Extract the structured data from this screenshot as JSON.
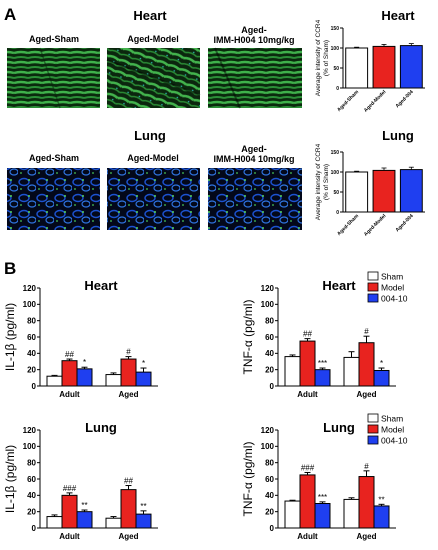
{
  "panel_a": {
    "letter": "A",
    "heart_title": "Heart",
    "lung_title": "Lung",
    "image_labels": [
      "Aged-Sham",
      "Aged-Model",
      "Aged-\nIMM-H004 10mg/kg"
    ],
    "heart_chart_title": "Heart",
    "lung_chart_title": "Lung"
  },
  "panel_b": {
    "letter": "B"
  },
  "legend": [
    "Sham",
    "Model",
    "004-10"
  ],
  "colors": {
    "sham": "#ffffff",
    "model": "#e8231f",
    "drug": "#1f3ff0",
    "heart_tissue": "#2e9a3a",
    "lung_tissue": "#1a3fb0"
  },
  "chart_data": [
    {
      "id": "a_heart",
      "type": "bar",
      "title": "Heart",
      "ylabel": "Average intensity of CCR4 (% of Sham)",
      "categories": [
        "Aged-Sham",
        "Aged-Model",
        "Aged-004"
      ],
      "values": [
        100,
        104,
        106
      ],
      "errors": [
        2,
        5,
        5
      ],
      "ylim": [
        0,
        150
      ],
      "yticks": [
        0,
        50,
        100,
        150
      ]
    },
    {
      "id": "a_lung",
      "type": "bar",
      "title": "Lung",
      "ylabel": "Average intensity of CCR4 (% of Sham)",
      "categories": [
        "Aged-Sham",
        "Aged-Model",
        "Aged-004"
      ],
      "values": [
        100,
        104,
        106
      ],
      "errors": [
        2,
        6,
        6
      ],
      "ylim": [
        0,
        150
      ],
      "yticks": [
        0,
        50,
        100,
        150
      ]
    },
    {
      "id": "b_heart_il1",
      "type": "bar",
      "title": "Heart",
      "ylabel": "IL-1β (pg/ml)",
      "categories": [
        "Adult",
        "Aged"
      ],
      "series": [
        {
          "name": "Sham",
          "values": [
            12,
            14
          ],
          "errors": [
            1,
            2
          ]
        },
        {
          "name": "Model",
          "values": [
            31,
            33
          ],
          "errors": [
            2,
            3
          ]
        },
        {
          "name": "004-10",
          "values": [
            21,
            17
          ],
          "errors": [
            2,
            5
          ]
        }
      ],
      "annotations": [
        [
          "",
          "##",
          "*"
        ],
        [
          "",
          "#",
          "*"
        ]
      ],
      "ylim": [
        0,
        120
      ],
      "yticks": [
        0,
        20,
        40,
        60,
        80,
        100,
        120
      ],
      "legend": false
    },
    {
      "id": "b_heart_tnf",
      "type": "bar",
      "title": "Heart",
      "ylabel": "TNF-α (pg/ml)",
      "categories": [
        "Adult",
        "Aged"
      ],
      "series": [
        {
          "name": "Sham",
          "values": [
            36,
            35
          ],
          "errors": [
            2,
            7
          ]
        },
        {
          "name": "Model",
          "values": [
            55,
            53
          ],
          "errors": [
            3,
            8
          ]
        },
        {
          "name": "004-10",
          "values": [
            20,
            19
          ],
          "errors": [
            2,
            3
          ]
        }
      ],
      "annotations": [
        [
          "",
          "##",
          "***"
        ],
        [
          "",
          "#",
          "*"
        ]
      ],
      "ylim": [
        0,
        120
      ],
      "yticks": [
        0,
        20,
        40,
        60,
        80,
        100,
        120
      ],
      "legend": true
    },
    {
      "id": "b_lung_il1",
      "type": "bar",
      "title": "Lung",
      "ylabel": "IL-1β (pg/ml)",
      "categories": [
        "Adult",
        "Aged"
      ],
      "series": [
        {
          "name": "Sham",
          "values": [
            14,
            12
          ],
          "errors": [
            2,
            2
          ]
        },
        {
          "name": "Model",
          "values": [
            40,
            47
          ],
          "errors": [
            3,
            5
          ]
        },
        {
          "name": "004-10",
          "values": [
            20,
            17
          ],
          "errors": [
            2,
            4
          ]
        }
      ],
      "annotations": [
        [
          "",
          "###",
          "**"
        ],
        [
          "",
          "##",
          "**"
        ]
      ],
      "ylim": [
        0,
        120
      ],
      "yticks": [
        0,
        20,
        40,
        60,
        80,
        100,
        120
      ],
      "legend": false
    },
    {
      "id": "b_lung_tnf",
      "type": "bar",
      "title": "Lung",
      "ylabel": "TNF-α (pg/ml)",
      "categories": [
        "Adult",
        "Aged"
      ],
      "series": [
        {
          "name": "Sham",
          "values": [
            33,
            35
          ],
          "errors": [
            1,
            2
          ]
        },
        {
          "name": "Model",
          "values": [
            65,
            63
          ],
          "errors": [
            3,
            7
          ]
        },
        {
          "name": "004-10",
          "values": [
            30,
            27
          ],
          "errors": [
            2,
            2
          ]
        }
      ],
      "annotations": [
        [
          "",
          "###",
          "***"
        ],
        [
          "",
          "#",
          "**"
        ]
      ],
      "ylim": [
        0,
        120
      ],
      "yticks": [
        0,
        20,
        40,
        60,
        80,
        100,
        120
      ],
      "legend": true
    }
  ]
}
